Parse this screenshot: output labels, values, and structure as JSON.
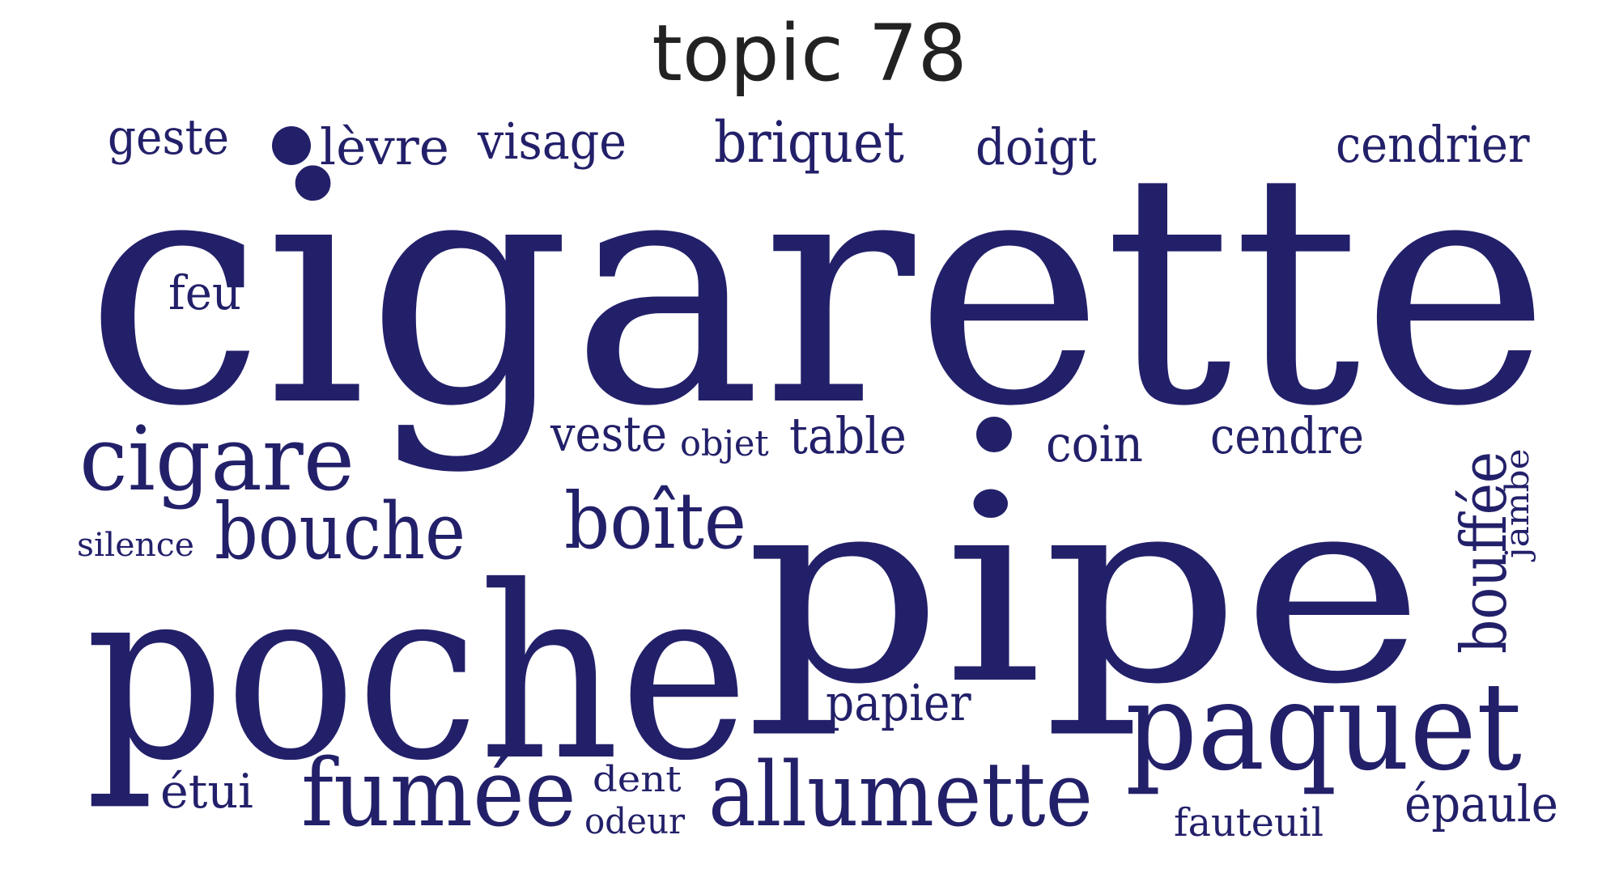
{
  "title": "topic 78",
  "color": "#23206a",
  "words": [
    {
      "text": "cigarette",
      "weight": 1.0
    },
    {
      "text": "pipe",
      "weight": 0.78
    },
    {
      "text": "poche",
      "weight": 0.62
    },
    {
      "text": "paquet",
      "weight": 0.34
    },
    {
      "text": "cigare",
      "weight": 0.24
    },
    {
      "text": "fumée",
      "weight": 0.23
    },
    {
      "text": "allumette",
      "weight": 0.22
    },
    {
      "text": "bouche",
      "weight": 0.2
    },
    {
      "text": "boîte",
      "weight": 0.2
    },
    {
      "text": "bouffée",
      "weight": 0.16
    },
    {
      "text": "briquet",
      "weight": 0.14
    },
    {
      "text": "cendrier",
      "weight": 0.13
    },
    {
      "text": "papier",
      "weight": 0.13
    },
    {
      "text": "épaule",
      "weight": 0.13
    },
    {
      "text": "visage",
      "weight": 0.13
    },
    {
      "text": "cendre",
      "weight": 0.13
    },
    {
      "text": "lèvre",
      "weight": 0.13
    },
    {
      "text": "table",
      "weight": 0.13
    },
    {
      "text": "doigt",
      "weight": 0.12
    },
    {
      "text": "coin",
      "weight": 0.12
    },
    {
      "text": "geste",
      "weight": 0.12
    },
    {
      "text": "veste",
      "weight": 0.12
    },
    {
      "text": "feu",
      "weight": 0.12
    },
    {
      "text": "étui",
      "weight": 0.12
    },
    {
      "text": "fauteuil",
      "weight": 0.1
    },
    {
      "text": "dent",
      "weight": 0.09
    },
    {
      "text": "odeur",
      "weight": 0.09
    },
    {
      "text": "objet",
      "weight": 0.09
    },
    {
      "text": "silence",
      "weight": 0.08
    },
    {
      "text": "jambe",
      "weight": 0.08
    }
  ]
}
